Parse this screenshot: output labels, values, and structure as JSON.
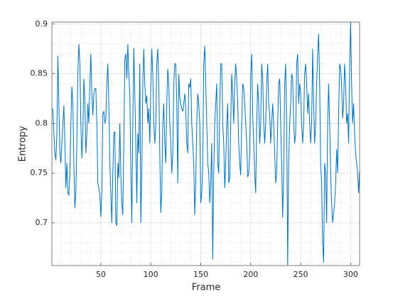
{
  "chart_data": {
    "type": "line",
    "xlabel": "Frame",
    "ylabel": "Entropy",
    "x": [
      1,
      2,
      3,
      4,
      5,
      6,
      7,
      8,
      9,
      10,
      11,
      12,
      13,
      14,
      15,
      16,
      17,
      18,
      19,
      20,
      21,
      22,
      23,
      24,
      25,
      26,
      27,
      28,
      29,
      30,
      31,
      32,
      33,
      34,
      35,
      36,
      37,
      38,
      39,
      40,
      41,
      42,
      43,
      44,
      45,
      46,
      47,
      48,
      49,
      50,
      51,
      52,
      53,
      54,
      55,
      56,
      57,
      58,
      59,
      60,
      61,
      62,
      63,
      64,
      65,
      66,
      67,
      68,
      69,
      70,
      71,
      72,
      73,
      74,
      75,
      76,
      77,
      78,
      79,
      80,
      81,
      82,
      83,
      84,
      85,
      86,
      87,
      88,
      89,
      90,
      91,
      92,
      93,
      94,
      95,
      96,
      97,
      98,
      99,
      100,
      101,
      102,
      103,
      104,
      105,
      106,
      107,
      108,
      109,
      110,
      111,
      112,
      113,
      114,
      115,
      116,
      117,
      118,
      119,
      120,
      121,
      122,
      123,
      124,
      125,
      126,
      127,
      128,
      129,
      130,
      131,
      132,
      133,
      134,
      135,
      136,
      137,
      138,
      139,
      140,
      141,
      142,
      143,
      144,
      145,
      146,
      147,
      148,
      149,
      150,
      151,
      152,
      153,
      154,
      155,
      156,
      157,
      158,
      159,
      160,
      161,
      162,
      163,
      164,
      165,
      166,
      167,
      168,
      169,
      170,
      171,
      172,
      173,
      174,
      175,
      176,
      177,
      178,
      179,
      180,
      181,
      182,
      183,
      184,
      185,
      186,
      187,
      188,
      189,
      190,
      191,
      192,
      193,
      194,
      195,
      196,
      197,
      198,
      199,
      200,
      201,
      202,
      203,
      204,
      205,
      206,
      207,
      208,
      209,
      210,
      211,
      212,
      213,
      214,
      215,
      216,
      217,
      218,
      219,
      220,
      221,
      222,
      223,
      224,
      225,
      226,
      227,
      228,
      229,
      230,
      231,
      232,
      233,
      234,
      235,
      236,
      237,
      238,
      239,
      240,
      241,
      242,
      243,
      244,
      245,
      246,
      247,
      248,
      249,
      250,
      251,
      252,
      253,
      254,
      255,
      256,
      257,
      258,
      259,
      260,
      261,
      262,
      263,
      264,
      265,
      266,
      267,
      268,
      269,
      270,
      271,
      272,
      273,
      274,
      275,
      276,
      277,
      278,
      279,
      280,
      281,
      282,
      283,
      284,
      285,
      286,
      287,
      288,
      289,
      290,
      291,
      292,
      293,
      294,
      295,
      296,
      297,
      298,
      299,
      300,
      301,
      302,
      303,
      304,
      305,
      306,
      307,
      308,
      309
    ],
    "series": [
      {
        "color": "#0072BD",
        "values": [
          0.815,
          0.814,
          0.79,
          0.77,
          0.763,
          0.79,
          0.868,
          0.82,
          0.77,
          0.76,
          0.78,
          0.8,
          0.818,
          0.78,
          0.735,
          0.76,
          0.73,
          0.728,
          0.75,
          0.8,
          0.837,
          0.82,
          0.76,
          0.715,
          0.73,
          0.78,
          0.85,
          0.88,
          0.86,
          0.8,
          0.765,
          0.79,
          0.845,
          0.825,
          0.77,
          0.79,
          0.82,
          0.8,
          0.84,
          0.87,
          0.83,
          0.808,
          0.83,
          0.835,
          0.835,
          0.8,
          0.74,
          0.735,
          0.728,
          0.706,
          0.73,
          0.81,
          0.812,
          0.8,
          0.805,
          0.84,
          0.86,
          0.82,
          0.76,
          0.73,
          0.7,
          0.75,
          0.79,
          0.792,
          0.7,
          0.697,
          0.76,
          0.745,
          0.8,
          0.75,
          0.72,
          0.708,
          0.78,
          0.865,
          0.87,
          0.845,
          0.88,
          0.85,
          0.83,
          0.755,
          0.7,
          0.8,
          0.876,
          0.83,
          0.78,
          0.72,
          0.79,
          0.77,
          0.86,
          0.7,
          0.75,
          0.84,
          0.875,
          0.84,
          0.82,
          0.828,
          0.8,
          0.815,
          0.78,
          0.835,
          0.875,
          0.85,
          0.8,
          0.78,
          0.8,
          0.86,
          0.875,
          0.84,
          0.77,
          0.71,
          0.73,
          0.8,
          0.82,
          0.78,
          0.76,
          0.82,
          0.855,
          0.84,
          0.8,
          0.78,
          0.75,
          0.77,
          0.84,
          0.86,
          0.86,
          0.82,
          0.74,
          0.85,
          0.826,
          0.82,
          0.815,
          0.812,
          0.82,
          0.83,
          0.815,
          0.78,
          0.77,
          0.84,
          0.836,
          0.845,
          0.8,
          0.78,
          0.76,
          0.708,
          0.74,
          0.8,
          0.83,
          0.82,
          0.8,
          0.72,
          0.73,
          0.76,
          0.86,
          0.878,
          0.84,
          0.8,
          0.76,
          0.75,
          0.72,
          0.74,
          0.78,
          0.663,
          0.75,
          0.8,
          0.82,
          0.84,
          0.76,
          0.75,
          0.82,
          0.86,
          0.86,
          0.8,
          0.78,
          0.735,
          0.76,
          0.8,
          0.82,
          0.74,
          0.745,
          0.8,
          0.85,
          0.83,
          0.8,
          0.84,
          0.86,
          0.845,
          0.82,
          0.78,
          0.76,
          0.748,
          0.8,
          0.84,
          0.836,
          0.82,
          0.8,
          0.78,
          0.746,
          0.75,
          0.77,
          0.85,
          0.87,
          0.81,
          0.78,
          0.75,
          0.73,
          0.8,
          0.84,
          0.82,
          0.78,
          0.8,
          0.86,
          0.845,
          0.8,
          0.78,
          0.8,
          0.84,
          0.86,
          0.82,
          0.81,
          0.78,
          0.8,
          0.82,
          0.8,
          0.77,
          0.74,
          0.75,
          0.8,
          0.84,
          0.845,
          0.8,
          0.76,
          0.705,
          0.75,
          0.84,
          0.86,
          0.8,
          0.657,
          0.76,
          0.8,
          0.82,
          0.85,
          0.845,
          0.8,
          0.78,
          0.79,
          0.86,
          0.87,
          0.82,
          0.84,
          0.83,
          0.8,
          0.78,
          0.8,
          0.85,
          0.86,
          0.84,
          0.81,
          0.83,
          0.8,
          0.78,
          0.8,
          0.875,
          0.82,
          0.78,
          0.8,
          0.84,
          0.87,
          0.89,
          0.84,
          0.76,
          0.74,
          0.68,
          0.66,
          0.76,
          0.75,
          0.7,
          0.8,
          0.84,
          0.8,
          0.75,
          0.72,
          0.7,
          0.71,
          0.72,
          0.74,
          0.774,
          0.75,
          0.81,
          0.86,
          0.855,
          0.84,
          0.805,
          0.82,
          0.86,
          0.84,
          0.8,
          0.81,
          0.78,
          0.86,
          0.902,
          0.84,
          0.8,
          0.82,
          0.79,
          0.77,
          0.76,
          0.75,
          0.73,
          0.752
        ]
      }
    ],
    "xlim": [
      1,
      309
    ],
    "ylim": [
      0.657,
      0.902
    ],
    "xticks": [
      50,
      100,
      150,
      200,
      250,
      300
    ],
    "yticks": [
      0.7,
      0.75,
      0.8,
      0.85,
      0.9
    ],
    "xminorticks": [
      10,
      20,
      30,
      40,
      60,
      70,
      80,
      90,
      110,
      120,
      130,
      140,
      160,
      170,
      180,
      190,
      210,
      220,
      230,
      240,
      260,
      270,
      280,
      290
    ],
    "yminorticks": [
      0.66,
      0.67,
      0.68,
      0.69,
      0.71,
      0.72,
      0.73,
      0.74,
      0.76,
      0.77,
      0.78,
      0.79,
      0.81,
      0.82,
      0.83,
      0.84,
      0.86,
      0.87,
      0.88,
      0.89
    ],
    "grid": true,
    "minor_grid": true
  }
}
